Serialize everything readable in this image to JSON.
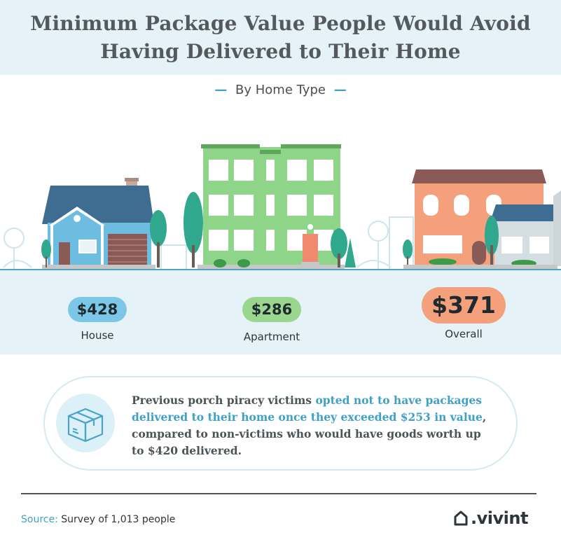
{
  "title": {
    "line1": "Minimum Package Value People Would Avoid",
    "line2": "Having Delivered to Their Home"
  },
  "subtitle": {
    "dash_left": "—",
    "text": "By Home Type",
    "dash_right": "—"
  },
  "stats": [
    {
      "value": "$428",
      "label": "House",
      "color": "#7cc7e8"
    },
    {
      "value": "$286",
      "label": "Apartment",
      "color": "#9bd68f"
    },
    {
      "value": "$371",
      "label": "Overall",
      "color": "#f4a07c"
    }
  ],
  "callout": {
    "icon": "package-box-icon",
    "text_before": "Previous porch piracy victims ",
    "text_highlight": "opted not to have packages delivered to their home once they exceeded $253 in value",
    "text_after": ", compared to non-victims who would have goods worth up to $420 delivered."
  },
  "source": {
    "label": "Source:",
    "text": "Survey of 1,013 people"
  },
  "logo": {
    "text": ".vivint",
    "icon": "house-outline-icon"
  },
  "colors": {
    "accent": "#3fa1c7",
    "band": "#e5f3f8",
    "ground": "#4aa4c8"
  }
}
